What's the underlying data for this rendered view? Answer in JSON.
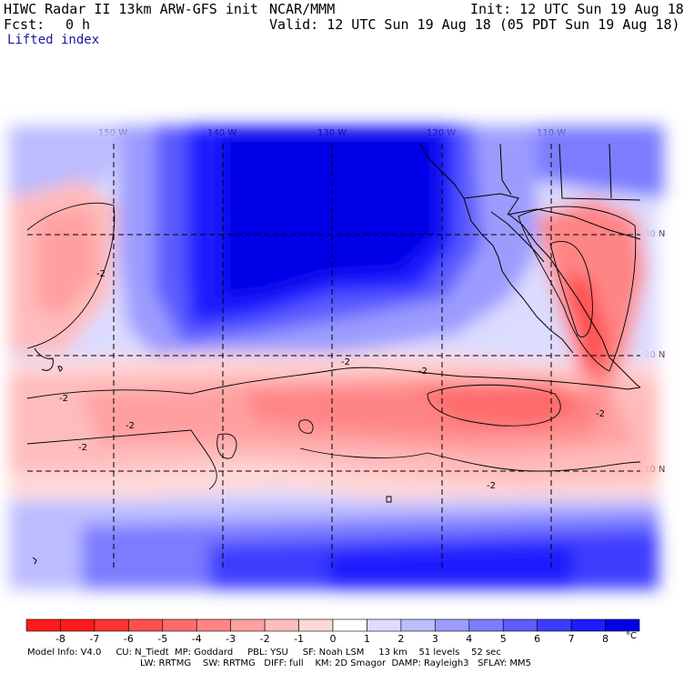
{
  "header": {
    "title_left": "HIWC Radar II 13km ARW-GFS init",
    "org": "NCAR/MMM",
    "init": "Init: 12 UTC Sun 19 Aug 18",
    "fcst_label": "Fcst:",
    "fcst_value": "0 h",
    "valid": "Valid: 12 UTC Sun 19 Aug 18 (05 PDT Sun 19 Aug 18)",
    "field": "Lifted index"
  },
  "map": {
    "lon_labels": [
      "150 W",
      "140 W",
      "130 W",
      "120 W",
      "110 W"
    ],
    "lat_labels": [
      "30 N",
      "20 N",
      "10 N"
    ],
    "contour_label": "-2",
    "colors": {
      "neg8": "#ff1a1a",
      "neg7": "#ff3333",
      "neg6": "#ff5050",
      "neg5": "#ff6b6b",
      "neg4": "#ff8585",
      "neg3": "#ffa0a0",
      "neg2": "#ffbcbc",
      "neg1": "#ffd8d8",
      "zero": "#ffffff",
      "pos1": "#dcdcff",
      "pos2": "#bcbcff",
      "pos3": "#9c9cff",
      "pos4": "#7c7cff",
      "pos5": "#5c5cff",
      "pos6": "#3c3cff",
      "pos7": "#1c1cff",
      "pos8": "#0000e6"
    }
  },
  "legend": {
    "ticks": [
      "-8",
      "-7",
      "-6",
      "-5",
      "-4",
      "-3",
      "-2",
      "-1",
      "0",
      "1",
      "2",
      "3",
      "4",
      "5",
      "6",
      "7",
      "8"
    ],
    "unit": "°C",
    "colors": [
      "#ff1a1a",
      "#ff3333",
      "#ff5050",
      "#ff6b6b",
      "#ff8585",
      "#ffa0a0",
      "#ffbcbc",
      "#ffd8d8",
      "#ffffff",
      "#dcdcff",
      "#bcbcff",
      "#9c9cff",
      "#7c7cff",
      "#5c5cff",
      "#3c3cff",
      "#1c1cff",
      "#0000e6"
    ]
  },
  "footer": {
    "line1": "Model Info: V4.0     CU: N_Tiedt  MP: Goddard     PBL: YSU     SF: Noah LSM     13 km    51 levels    52 sec",
    "line2": "LW: RRTMG    SW: RRTMG   DIFF: full    KM: 2D Smagor  DAMP: Rayleigh3   SFLAY: MM5"
  }
}
